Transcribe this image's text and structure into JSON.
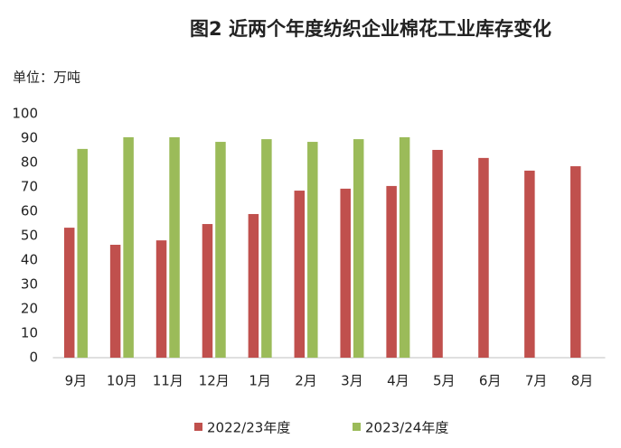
{
  "chart_data": {
    "type": "bar",
    "title": "图2 近两个年度纺织企业棉花工业库存变化",
    "subtitle": "单位：万吨",
    "categories": [
      "9月",
      "10月",
      "11月",
      "12月",
      "1月",
      "2月",
      "3月",
      "4月",
      "5月",
      "6月",
      "7月",
      "8月"
    ],
    "series": [
      {
        "name": "2022/23年度",
        "color": "#c0504d",
        "values": [
          53.3,
          46.3,
          48.1,
          54.8,
          58.9,
          68.5,
          69.3,
          70.4,
          85.2,
          81.9,
          76.7,
          78.5
        ]
      },
      {
        "name": "2023/24年度",
        "color": "#9bbb59",
        "values": [
          85.6,
          90.4,
          90.4,
          88.5,
          89.6,
          88.5,
          89.6,
          90.4,
          null,
          null,
          null,
          null
        ]
      }
    ],
    "ylim": [
      0,
      100
    ],
    "yticks": [
      0,
      10,
      20,
      30,
      40,
      50,
      60,
      70,
      80,
      90,
      100
    ],
    "grid": false,
    "legend": "bottom"
  }
}
